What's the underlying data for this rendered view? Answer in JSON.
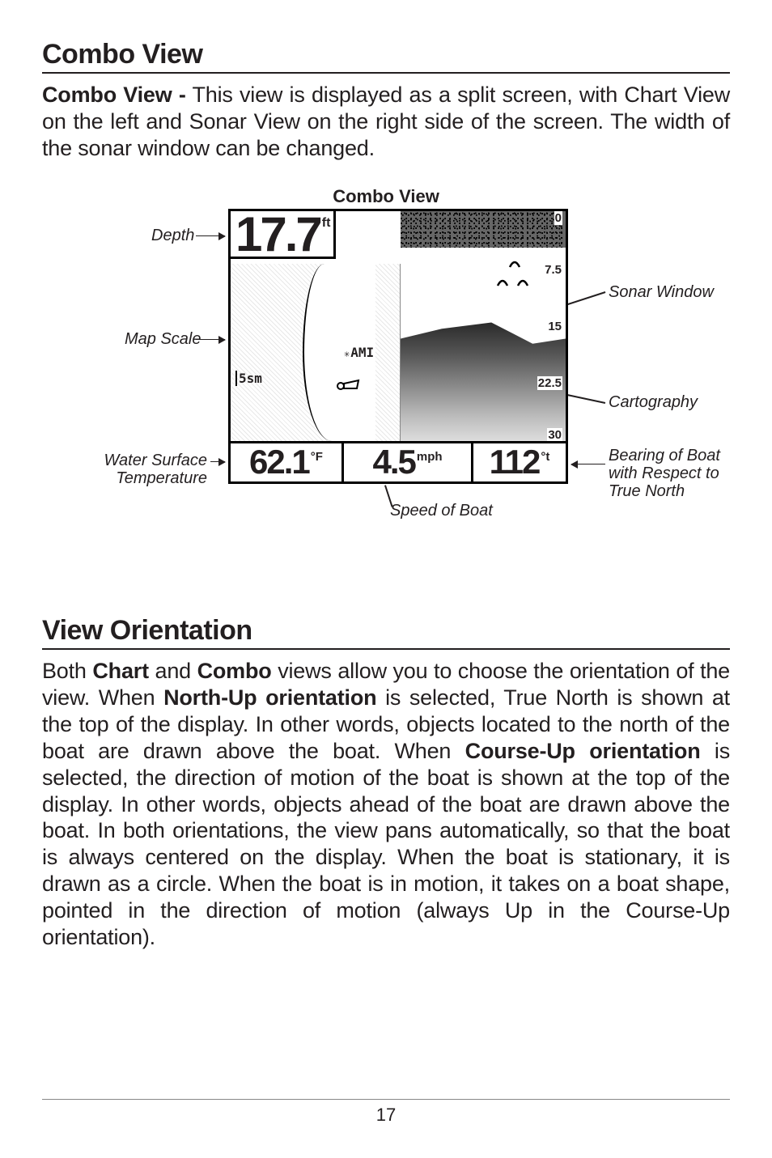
{
  "section1": {
    "heading": "Combo View",
    "paragraph_html": "<b>Combo View -</b> This view is displayed as a split screen, with Chart View on the left and Sonar View on the right side of the screen. The width of the sonar window can be changed."
  },
  "figure": {
    "title": "Combo View",
    "depth_value": "17.7",
    "depth_unit": "ft",
    "map_scale_text": "5sm",
    "city_label": "AMI",
    "ruler": {
      "r0": "0",
      "r1": "7.5",
      "r2": "15",
      "r3": "22.5",
      "r4": "30"
    },
    "temp_value": "62.1",
    "temp_unit": "°F",
    "speed_value": "4.5",
    "speed_unit": "mph",
    "bearing_value": "112",
    "bearing_unit": "°t",
    "callouts": {
      "depth": "Depth",
      "map_scale": "Map Scale",
      "water_temp_l1": "Water Surface",
      "water_temp_l2": "Temperature",
      "sonar_window": "Sonar Window",
      "cartography": "Cartography",
      "bearing_l1": "Bearing of Boat",
      "bearing_l2": "with Respect to",
      "bearing_l3": "True North",
      "speed": "Speed of Boat"
    }
  },
  "section2": {
    "heading": "View Orientation",
    "paragraph_html": "Both <b>Chart</b> and <b>Combo</b> views allow you to choose the orientation of the view. When <b>North-Up orientation</b> is selected, True North is shown at the top of the display. In other words, objects located to the north of the boat are drawn above the boat. When <b>Course-Up orientation</b> is selected, the direction of motion of the boat is shown at the top of the display. In other words, objects ahead of the boat are drawn above the boat. In both orientations, the view pans automatically, so that the boat is always centered on the display. When the boat is stationary, it is drawn as a circle. When the boat is in motion, it takes on a boat shape, pointed in the direction of motion (always Up in the Course-Up orientation)."
  },
  "page_number": "17"
}
